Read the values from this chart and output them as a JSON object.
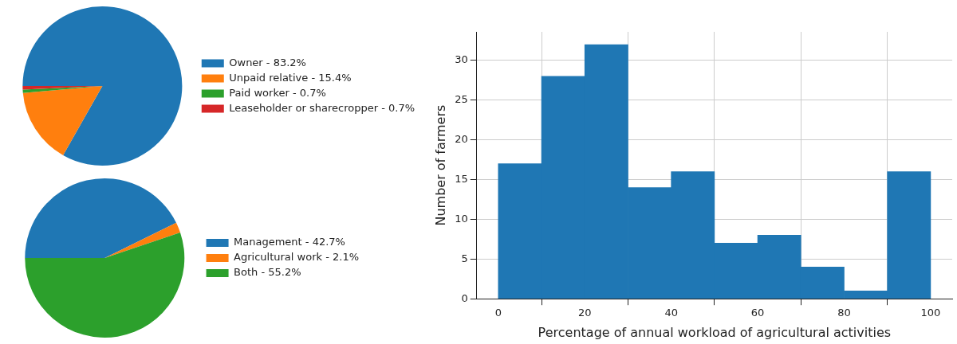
{
  "chart_data": [
    {
      "type": "pie",
      "categories": [
        "Owner - 83.2%",
        "Unpaid relative - 15.4%",
        "Paid worker - 0.7%",
        "Leaseholder or sharecropper - 0.7%"
      ],
      "values": [
        83.2,
        15.4,
        0.7,
        0.7
      ],
      "colors": [
        "#1f77b4",
        "#ff7f0e",
        "#2ca02c",
        "#d62728"
      ],
      "legend": "right"
    },
    {
      "type": "pie",
      "categories": [
        "Management - 42.7%",
        "Agricultural work - 2.1%",
        "Both - 55.2%"
      ],
      "values": [
        42.7,
        2.1,
        55.2
      ],
      "colors": [
        "#1f77b4",
        "#ff7f0e",
        "#2ca02c"
      ],
      "legend": "right"
    },
    {
      "type": "histogram",
      "bins": [
        0,
        10,
        20,
        30,
        40,
        50,
        60,
        70,
        80,
        90,
        100
      ],
      "values": [
        17,
        28,
        32,
        14,
        16,
        7,
        8,
        4,
        1,
        16
      ],
      "color": "#1f77b4",
      "xlabel": "Percentage of annual workload of agricultural activities",
      "ylabel": "Number of farmers",
      "xlim": [
        -5,
        105
      ],
      "ylim": [
        0,
        33.6
      ],
      "xticks": [
        0,
        20,
        40,
        60,
        80,
        100
      ],
      "yticks": [
        0,
        5,
        10,
        15,
        20,
        25,
        30
      ],
      "grid": true
    }
  ]
}
